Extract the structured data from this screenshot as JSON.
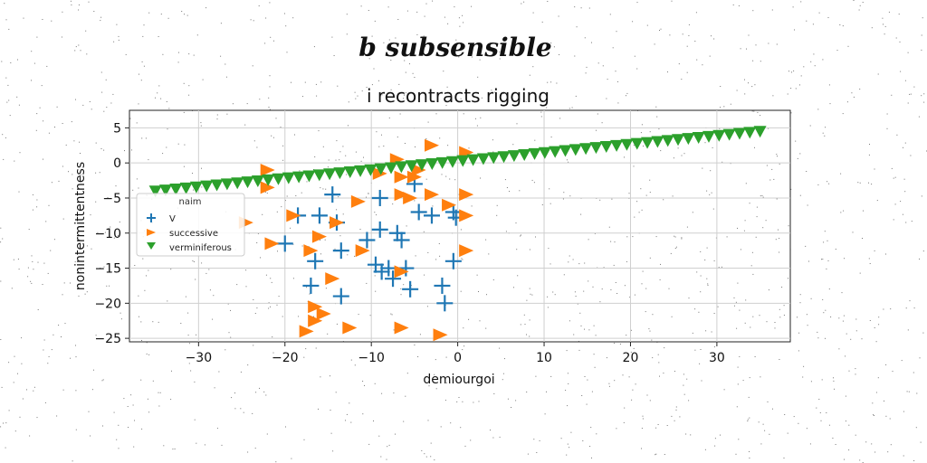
{
  "suptitle": "b subsensible",
  "chart_data": {
    "type": "scatter",
    "title": "i recontracts rigging",
    "xlabel": "demiourgoi",
    "ylabel": "nonintermittentness",
    "xlim": [
      -38,
      38.5
    ],
    "ylim": [
      -25.5,
      7.5
    ],
    "xticks": [
      -30,
      -20,
      -10,
      0,
      10,
      20,
      30
    ],
    "yticks": [
      5,
      0,
      -5,
      -10,
      -15,
      -20,
      -25
    ],
    "xtick_labels": [
      "−30",
      "−20",
      "−10",
      "0",
      "10",
      "20",
      "30"
    ],
    "ytick_labels": [
      "5",
      "0",
      "−5",
      "−10",
      "−15",
      "−20",
      "−25"
    ],
    "grid": true,
    "legend": {
      "title": "naim",
      "placement": "center-left",
      "entries": [
        "V",
        "successive",
        "verminiferous"
      ]
    },
    "series": [
      {
        "name": "V",
        "marker": "plus",
        "color": "#1f77b4",
        "points": [
          [
            -14.5,
            -4.5
          ],
          [
            -9,
            -5
          ],
          [
            -5,
            -3
          ],
          [
            -4.5,
            -7
          ],
          [
            -3,
            -7.5
          ],
          [
            -0.5,
            -7
          ],
          [
            -0.2,
            -7.8
          ],
          [
            -18.5,
            -7.5
          ],
          [
            -16,
            -7.5
          ],
          [
            -14,
            -8.5
          ],
          [
            -9,
            -9.5
          ],
          [
            -7,
            -10
          ],
          [
            -6.5,
            -11
          ],
          [
            -20,
            -11.5
          ],
          [
            -13.5,
            -12.5
          ],
          [
            -10.5,
            -11
          ],
          [
            -0.5,
            -14
          ],
          [
            -16.5,
            -14
          ],
          [
            -9.5,
            -14.5
          ],
          [
            -8.8,
            -15.5
          ],
          [
            -8,
            -15
          ],
          [
            -7.5,
            -16.5
          ],
          [
            -6,
            -15
          ],
          [
            -17,
            -17.5
          ],
          [
            -5.5,
            -18
          ],
          [
            -1.8,
            -17.5
          ],
          [
            -13.5,
            -19
          ],
          [
            -1.5,
            -20
          ]
        ]
      },
      {
        "name": "successive",
        "marker": "triangle-right",
        "color": "#ff7f0e",
        "points": [
          [
            -3,
            2.5
          ],
          [
            1,
            1.5
          ],
          [
            -7,
            0.5
          ],
          [
            -22,
            -1
          ],
          [
            -9,
            -1.5
          ],
          [
            -6.5,
            -2
          ],
          [
            -5,
            -2
          ],
          [
            -4.5,
            -1
          ],
          [
            -22,
            -3.5
          ],
          [
            -6.5,
            -4.5
          ],
          [
            -5.5,
            -5
          ],
          [
            -3,
            -4.5
          ],
          [
            1,
            -4.5
          ],
          [
            -11.5,
            -5.5
          ],
          [
            -1,
            -6
          ],
          [
            -19,
            -7.5
          ],
          [
            1,
            -7.5
          ],
          [
            -24.5,
            -8.5
          ],
          [
            -14,
            -8.5
          ],
          [
            -16,
            -10.5
          ],
          [
            -21.5,
            -11.5
          ],
          [
            -17,
            -12.5
          ],
          [
            -11,
            -12.5
          ],
          [
            1,
            -12.5
          ],
          [
            -6.5,
            -15.5
          ],
          [
            -14.5,
            -16.5
          ],
          [
            -16.5,
            -20.5
          ],
          [
            -15.5,
            -21.5
          ],
          [
            -16.5,
            -22.5
          ],
          [
            -17.5,
            -24
          ],
          [
            -12.5,
            -23.5
          ],
          [
            -6.5,
            -23.5
          ],
          [
            -2,
            -24.5
          ]
        ]
      },
      {
        "name": "verminiferous",
        "marker": "triangle-down",
        "color": "#2ca02c",
        "x_start": -35,
        "x_end": 35,
        "y_start": -4,
        "y_end": 4.5,
        "count": 60
      }
    ]
  }
}
